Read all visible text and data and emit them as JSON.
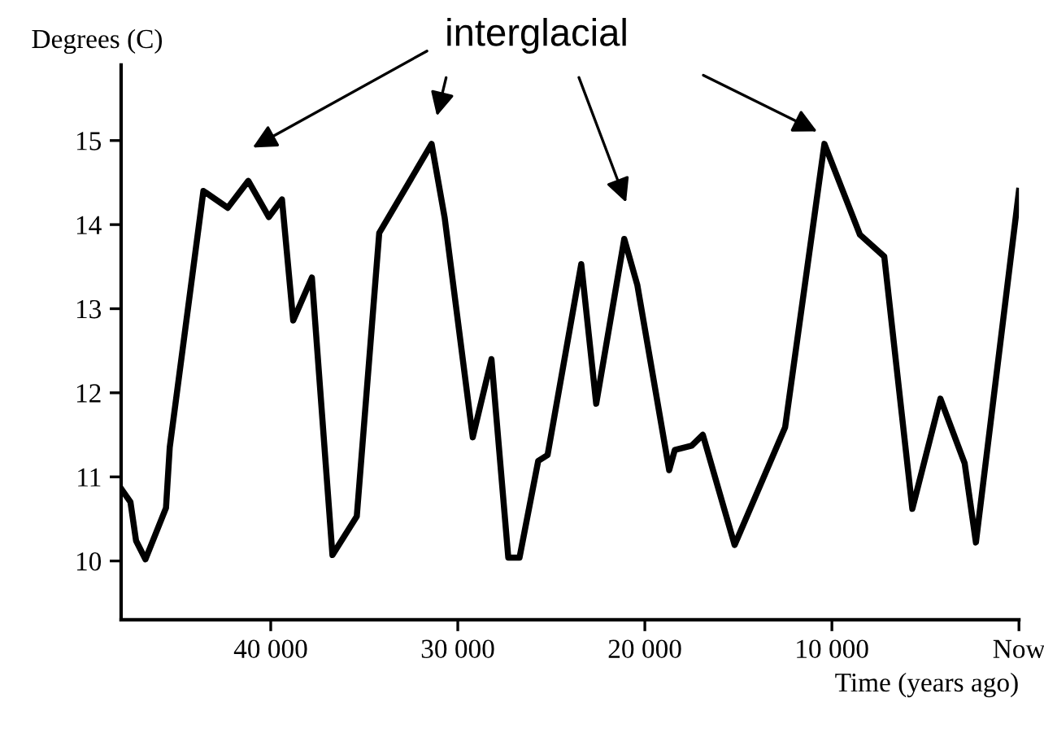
{
  "chart_data": {
    "type": "line",
    "xlabel": "Time (years ago)",
    "ylabel": "Degrees (C)",
    "x": [
      48000,
      47500,
      47200,
      46700,
      45600,
      45400,
      43600,
      42300,
      41200,
      40100,
      39400,
      38800,
      37800,
      36700,
      35400,
      34200,
      31400,
      30700,
      29200,
      28200,
      27300,
      26700,
      25700,
      25200,
      23400,
      22600,
      21100,
      20400,
      18700,
      18400,
      17500,
      16900,
      15200,
      12500,
      10400,
      8500,
      7200,
      5700,
      4200,
      2900,
      2300,
      0
    ],
    "series": [
      {
        "color": "#000000",
        "values": [
          10.86,
          10.7,
          10.24,
          10.02,
          10.63,
          11.35,
          14.4,
          14.2,
          14.52,
          14.09,
          14.3,
          12.86,
          13.37,
          10.07,
          10.53,
          13.9,
          14.96,
          14.08,
          11.47,
          12.4,
          10.04,
          10.04,
          11.19,
          11.26,
          13.53,
          11.87,
          13.83,
          13.28,
          11.08,
          11.32,
          11.37,
          11.5,
          10.19,
          11.59,
          14.96,
          13.88,
          13.62,
          10.62,
          11.93,
          11.16,
          10.22,
          14.4
        ]
      }
    ],
    "xlim": [
      48000,
      0
    ],
    "ylim": [
      9.3,
      15.9
    ],
    "xticks": [
      {
        "value": 40000,
        "label": "40 000"
      },
      {
        "value": 30000,
        "label": "30 000"
      },
      {
        "value": 20000,
        "label": "20 000"
      },
      {
        "value": 10000,
        "label": "10 000"
      },
      {
        "value": 0,
        "label": "Now"
      }
    ],
    "yticks": [
      10,
      11,
      12,
      13,
      14,
      15
    ],
    "annotations": [
      "interglacial"
    ],
    "grid": false,
    "legend": false,
    "marker": "none",
    "line_style": "solid"
  }
}
